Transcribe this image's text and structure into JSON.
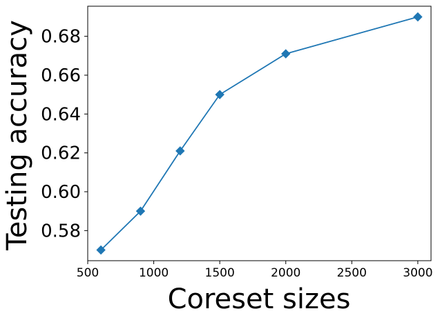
{
  "chart_data": {
    "type": "line",
    "title": "",
    "xlabel": "Coreset sizes",
    "ylabel": "Testing accuracy",
    "x": [
      600,
      900,
      1200,
      1500,
      2000,
      3000
    ],
    "series": [
      {
        "values": [
          0.57,
          0.59,
          0.621,
          0.65,
          0.671,
          0.69
        ],
        "color": "#1f77b4",
        "marker": "diamond"
      }
    ],
    "xlim": [
      500,
      3100
    ],
    "ylim": [
      0.5645,
      0.6955
    ],
    "xticks": [
      500,
      1000,
      1500,
      2000,
      2500,
      3000
    ],
    "xtick_labels": [
      "500",
      "1000",
      "1500",
      "2000",
      "2500",
      "3000"
    ],
    "yticks": [
      0.58,
      0.6,
      0.62,
      0.64,
      0.66,
      0.68
    ],
    "ytick_labels": [
      "0.58",
      "0.60",
      "0.62",
      "0.64",
      "0.66",
      "0.68"
    ],
    "grid": false,
    "legend": "none"
  }
}
